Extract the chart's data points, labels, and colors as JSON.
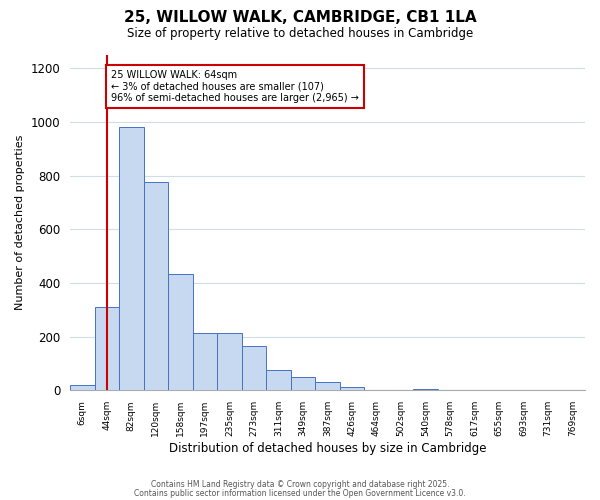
{
  "title": "25, WILLOW WALK, CAMBRIDGE, CB1 1LA",
  "subtitle": "Size of property relative to detached houses in Cambridge",
  "xlabel": "Distribution of detached houses by size in Cambridge",
  "ylabel": "Number of detached properties",
  "bar_labels": [
    "6sqm",
    "44sqm",
    "82sqm",
    "120sqm",
    "158sqm",
    "197sqm",
    "235sqm",
    "273sqm",
    "311sqm",
    "349sqm",
    "387sqm",
    "426sqm",
    "464sqm",
    "502sqm",
    "540sqm",
    "578sqm",
    "617sqm",
    "655sqm",
    "693sqm",
    "731sqm",
    "769sqm"
  ],
  "bar_values": [
    20,
    310,
    980,
    775,
    435,
    215,
    215,
    165,
    75,
    48,
    30,
    12,
    0,
    0,
    5,
    0,
    0,
    0,
    0,
    0,
    2
  ],
  "bar_color": "#c6d9f0",
  "bar_edge_color": "#4472c4",
  "annotation_line1": "25 WILLOW WALK: 64sqm",
  "annotation_line2": "← 3% of detached houses are smaller (107)",
  "annotation_line3": "96% of semi-detached houses are larger (2,965) →",
  "annotation_box_color": "#ffffff",
  "annotation_box_edge": "#cc0000",
  "ref_line_color": "#cc0000",
  "ylim": [
    0,
    1250
  ],
  "yticks": [
    0,
    200,
    400,
    600,
    800,
    1000,
    1200
  ],
  "footer1": "Contains HM Land Registry data © Crown copyright and database right 2025.",
  "footer2": "Contains public sector information licensed under the Open Government Licence v3.0.",
  "bg_color": "#ffffff",
  "grid_color": "#d0dce8"
}
